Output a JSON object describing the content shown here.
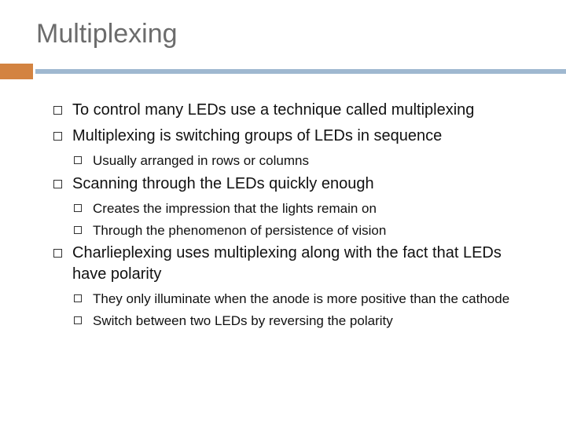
{
  "title": "Multiplexing",
  "colors": {
    "title_text": "#6c6c6c",
    "orange_block": "#d38341",
    "blue_line": "#9fb8d0",
    "body_text": "#111111",
    "background": "#ffffff"
  },
  "bullets": {
    "b1": "To control many LEDs use a technique called multiplexing",
    "b2": "Multiplexing  is switching groups of LEDs in sequence",
    "b2_1": "Usually arranged in rows or columns",
    "b3": "Scanning through the LEDs quickly enough",
    "b3_1": "Creates the impression that the lights remain on",
    "b3_2": "Through the phenomenon of persistence of vision",
    "b4": "Charlieplexing uses multiplexing along with the fact that LEDs have polarity",
    "b4_1": "They only illuminate when the anode is more positive than the cathode",
    "b4_2": "Switch between two LEDs by reversing the polarity"
  }
}
